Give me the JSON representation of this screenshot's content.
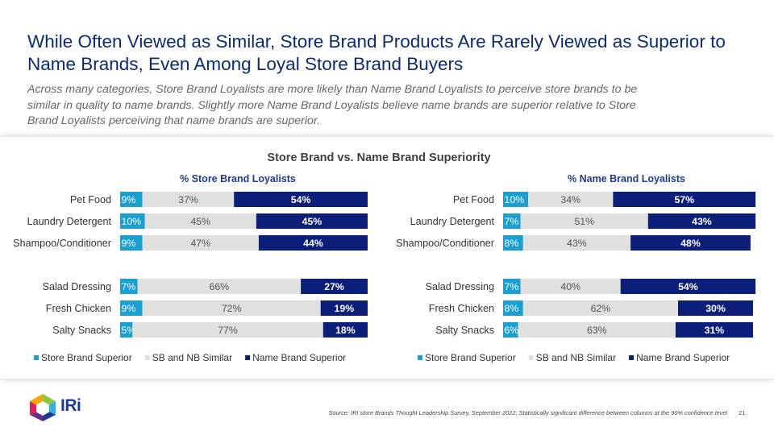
{
  "header": {
    "title": "While Often Viewed as Similar, Store Brand Products Are Rarely Viewed as Superior to Name Brands, Even Among Loyal Store Brand Buyers",
    "subtitle": "Across many categories, Store Brand Loyalists are more likely than Name Brand Loyalists to perceive store brands to be similar in quality to name brands. Slightly more Name Brand Loyalists believe name brands are superior relative to Store Brand Loyalists perceiving that name brands are superior."
  },
  "chart_data": [
    {
      "type": "bar",
      "stacked": true,
      "orientation": "horizontal",
      "title": "Store Brand vs. Name Brand Superiority",
      "subtitle": "% Store Brand Loyalists",
      "categories": [
        "Pet Food",
        "Laundry Detergent",
        "Shampoo/Conditioner",
        "Salad Dressing",
        "Fresh Chicken",
        "Salty Snacks"
      ],
      "series": [
        {
          "name": "Store Brand Superior",
          "values": [
            9,
            10,
            9,
            7,
            9,
            5
          ]
        },
        {
          "name": "SB and NB Similar",
          "values": [
            37,
            45,
            47,
            66,
            72,
            77
          ]
        },
        {
          "name": "Name Brand Superior",
          "values": [
            54,
            45,
            44,
            27,
            19,
            18
          ]
        }
      ],
      "xlim": [
        0,
        100
      ],
      "legend": "bottom",
      "grid": false
    },
    {
      "type": "bar",
      "stacked": true,
      "orientation": "horizontal",
      "title": "",
      "subtitle": "% Name Brand Loyalists",
      "categories": [
        "Pet Food",
        "Laundry Detergent",
        "Shampoo/Conditioner",
        "Salad Dressing",
        "Fresh Chicken",
        "Salty Snacks"
      ],
      "series": [
        {
          "name": "Store Brand Superior",
          "values": [
            10,
            7,
            8,
            7,
            8,
            6
          ]
        },
        {
          "name": "SB and NB Similar",
          "values": [
            34,
            51,
            43,
            40,
            62,
            63
          ]
        },
        {
          "name": "Name Brand Superior",
          "values": [
            57,
            43,
            48,
            54,
            30,
            31
          ]
        }
      ],
      "xlim": [
        0,
        100
      ],
      "legend": "bottom",
      "grid": false
    }
  ],
  "colors": {
    "store_brand_superior": "#1a9fd1",
    "similar": "#e0e0df",
    "name_brand_superior": "#0b1f7a"
  },
  "footer": {
    "logo_text": "IRi",
    "source": "Source: IRI store Brands Thought Leadership Survey, September 2022; Statistically significant difference between columns at the 90% confidence level",
    "page_number": "21"
  }
}
